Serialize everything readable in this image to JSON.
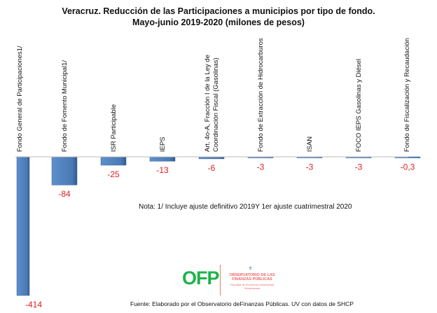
{
  "chart_data": {
    "type": "bar",
    "title": "Veracruz. Reducción  de las  Participaciones  a municipios  por tipo de fondo.",
    "subtitle": "Mayo-junio  2019-2020 (milones de pesos)",
    "categories": [
      "Fondo General de  Participaciones1/",
      "Fondo de Fomento Municipal1/",
      "ISR Participable",
      "IEPS",
      "Art. 4o-A, Fracción I de la Ley de Coordinación Fiscal (Gasolinas)",
      "Fondo de Extracción de Hidrocarburos",
      "ISAN",
      "FOCO IEPS Gasolinas y Diésel",
      "Fondo de Fiscalización  y Recaudación"
    ],
    "category_lines": [
      [
        "Fondo General de  Participaciones1/"
      ],
      [
        "Fondo de Fomento Municipal1/"
      ],
      [
        "ISR Participable"
      ],
      [
        "IEPS"
      ],
      [
        "Art. 4o-A, Fracción I de la Ley de",
        "Coordinación Fiscal (Gasolinas)"
      ],
      [
        "Fondo de Extracción de Hidrocarburos"
      ],
      [
        "ISAN"
      ],
      [
        "FOCO IEPS Gasolinas y Diésel"
      ],
      [
        "Fondo de Fiscalización  y Recaudación"
      ]
    ],
    "values": [
      -414,
      -84,
      -25,
      -13,
      -6,
      -3,
      -3,
      -3,
      -0.3
    ],
    "data_labels": [
      "-414",
      "-84",
      "-25",
      "-13",
      "-6",
      "-3",
      "-3",
      "-3",
      "-0,3"
    ],
    "xlabel": "",
    "ylabel": "",
    "ylim": [
      -414,
      0
    ],
    "grid": false,
    "bar_color": "#4f81bd",
    "label_color": "#e02020"
  },
  "note": "Nota: 1/ Incluye ajuste definitivo 2019Y 1er ajuste cuatrimestral 2020",
  "source": "Fuente:  Elaborado  por el Observatorio  deFinanzas  Públicas. UV con datos de SHCP",
  "logo": {
    "text": "OFP",
    "line1": "OBSERVATORIO DE LAS FINANZAS PÚBLICAS",
    "line2": "Facultad de Economía Universidad Veracruzana"
  }
}
